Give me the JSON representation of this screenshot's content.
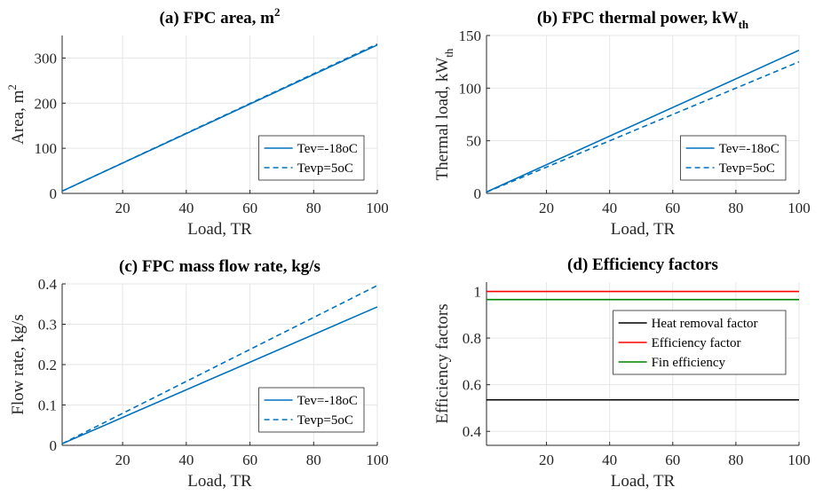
{
  "chart_data": [
    {
      "type": "line",
      "title": "(a) FPC area, m",
      "title_sup": "2",
      "xlabel": "Load, TR",
      "ylabel": "Area, m",
      "ylabel_sup": "2",
      "x": [
        1,
        100
      ],
      "xlim": [
        1,
        100
      ],
      "xticks": [
        20,
        40,
        60,
        80,
        100
      ],
      "ylim": [
        0,
        350
      ],
      "yticks": [
        0,
        100,
        200,
        300
      ],
      "grid": true,
      "legend": "southeast",
      "series": [
        {
          "name": "Tev=-18oC",
          "color": "#0072bd",
          "dash": false,
          "values": [
            5,
            329
          ]
        },
        {
          "name": "Tevp=5oC",
          "color": "#0072bd",
          "dash": true,
          "values": [
            5,
            331
          ]
        }
      ]
    },
    {
      "type": "line",
      "title": "(b) FPC thermal power, kW",
      "title_sub": "th",
      "xlabel": "Load, TR",
      "ylabel": "Thermal load, kW",
      "ylabel_sub": "th",
      "x": [
        1,
        100
      ],
      "xlim": [
        1,
        100
      ],
      "xticks": [
        20,
        40,
        60,
        80,
        100
      ],
      "ylim": [
        0,
        150
      ],
      "yticks": [
        0,
        50,
        100,
        150
      ],
      "grid": true,
      "legend": "southeast",
      "series": [
        {
          "name": "Tev=-18oC",
          "color": "#0072bd",
          "dash": false,
          "values": [
            1.4,
            136
          ]
        },
        {
          "name": "Tevp=5oC",
          "color": "#0072bd",
          "dash": true,
          "values": [
            1.2,
            125
          ]
        }
      ]
    },
    {
      "type": "line",
      "title": "(c) FPC mass flow rate, kg/s",
      "xlabel": "Load, TR",
      "ylabel": "Flow rate, kg/s",
      "x": [
        1,
        100
      ],
      "xlim": [
        1,
        100
      ],
      "xticks": [
        20,
        40,
        60,
        80,
        100
      ],
      "ylim": [
        0,
        0.4
      ],
      "yticks": [
        0,
        0.1,
        0.2,
        0.3,
        0.4
      ],
      "grid": true,
      "legend": "southeast",
      "series": [
        {
          "name": "Tev=-18oC",
          "color": "#0072bd",
          "dash": false,
          "values": [
            0.004,
            0.343
          ]
        },
        {
          "name": "Tevp=5oC",
          "color": "#0072bd",
          "dash": true,
          "values": [
            0.004,
            0.396
          ]
        }
      ]
    },
    {
      "type": "line",
      "title": "(d) Efficiency factors",
      "xlabel": "Load, TR",
      "ylabel": "Efficiency factors",
      "x": [
        1,
        100
      ],
      "xlim": [
        1,
        100
      ],
      "xticks": [
        20,
        40,
        60,
        80,
        100
      ],
      "ylim": [
        0.34,
        1.04
      ],
      "yticks": [
        0.4,
        0.6,
        0.8,
        1
      ],
      "grid": true,
      "legend": "northeast",
      "series": [
        {
          "name": "Heat removal factor",
          "color": "#000000",
          "dash": false,
          "values": [
            0.535,
            0.535
          ]
        },
        {
          "name": "Efficiency factor",
          "color": "#ff0000",
          "dash": false,
          "values": [
            1,
            1
          ]
        },
        {
          "name": "Fin efficiency",
          "color": "#008000",
          "dash": false,
          "values": [
            0.965,
            0.965
          ]
        }
      ]
    }
  ]
}
